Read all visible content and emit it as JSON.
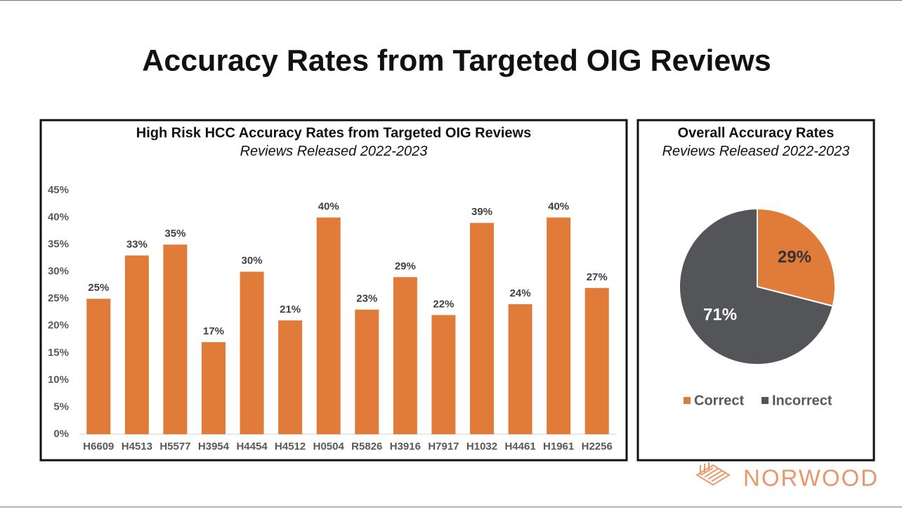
{
  "title": "Accuracy Rates from Targeted OIG Reviews",
  "logo": "NORWOOD",
  "chart_data": [
    {
      "type": "bar",
      "title": "High Risk HCC Accuracy Rates from Targeted OIG Reviews",
      "subtitle": "Reviews Released 2022-2023",
      "categories": [
        "H6609",
        "H4513",
        "H5577",
        "H3954",
        "H4454",
        "H4512",
        "H0504",
        "R5826",
        "H3916",
        "H7917",
        "H1032",
        "H4461",
        "H1961",
        "H2256"
      ],
      "values": [
        25,
        33,
        35,
        17,
        30,
        21,
        40,
        23,
        29,
        22,
        39,
        24,
        40,
        27
      ],
      "value_labels": [
        "25%",
        "33%",
        "35%",
        "17%",
        "30%",
        "21%",
        "40%",
        "23%",
        "29%",
        "22%",
        "39%",
        "24%",
        "40%",
        "27%"
      ],
      "color": "#e07b39",
      "ylim": [
        0,
        45
      ],
      "yticks": [
        {
          "value": 0,
          "label": "0%"
        },
        {
          "value": 5,
          "label": "5%"
        },
        {
          "value": 10,
          "label": "10%"
        },
        {
          "value": 15,
          "label": "15%"
        },
        {
          "value": 20,
          "label": "20%"
        },
        {
          "value": 25,
          "label": "25%"
        },
        {
          "value": 30,
          "label": "30%"
        },
        {
          "value": 35,
          "label": "35%"
        },
        {
          "value": 40,
          "label": "40%"
        },
        {
          "value": 45,
          "label": "45%"
        }
      ],
      "grid": false
    },
    {
      "type": "pie",
      "title": "Overall Accuracy Rates",
      "subtitle": "Reviews Released 2022-2023",
      "categories": [
        "Correct",
        "Incorrect"
      ],
      "values": [
        29,
        71
      ],
      "value_labels": [
        "29%",
        "71%"
      ],
      "colors": [
        "#e07b39",
        "#545559"
      ],
      "legend": "bottom"
    }
  ]
}
